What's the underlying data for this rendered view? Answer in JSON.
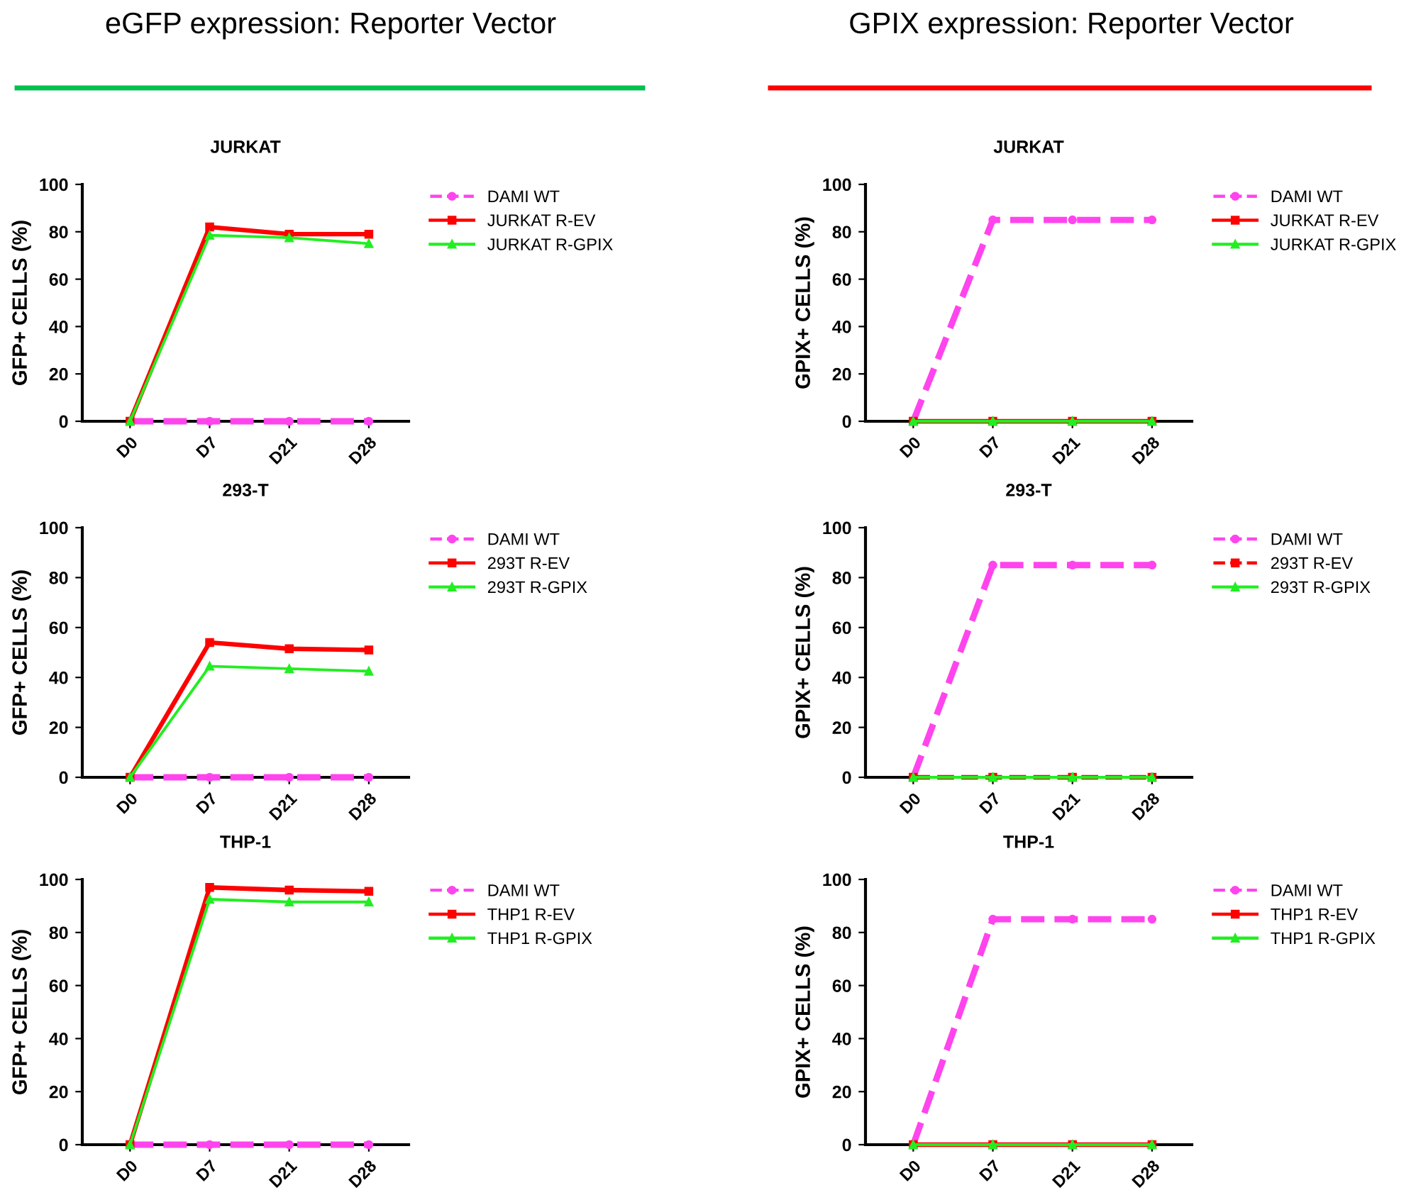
{
  "chart_data": [
    {
      "type": "line",
      "annotations": [
        "eGFP expression: Reporter Vector"
      ],
      "title": "JURKAT",
      "ylabel": "GFP+ CELLS (%)",
      "categories": [
        "D0",
        "D7",
        "D21",
        "D28"
      ],
      "ylim": [
        0,
        100
      ],
      "yticks": [
        0,
        20,
        40,
        60,
        80,
        100
      ],
      "grid": false,
      "legend": "right",
      "series": [
        {
          "name": "DAMI WT",
          "color": "#ff44ee",
          "values": [
            0,
            0,
            0,
            0
          ],
          "line_style": "dashed",
          "marker": "circle"
        },
        {
          "name": "JURKAT R-EV",
          "color": "#ff0000",
          "values": [
            0,
            82,
            79,
            79
          ],
          "line_style": "solid",
          "marker": "square"
        },
        {
          "name": "JURKAT R-GPIX",
          "color": "#22ee22",
          "values": [
            0,
            78.5,
            77.5,
            75
          ],
          "line_style": "solid",
          "marker": "triangle"
        }
      ]
    },
    {
      "type": "line",
      "title": "293-T",
      "ylabel": "GFP+ CELLS (%)",
      "categories": [
        "D0",
        "D7",
        "D21",
        "D28"
      ],
      "ylim": [
        0,
        100
      ],
      "yticks": [
        0,
        20,
        40,
        60,
        80,
        100
      ],
      "grid": false,
      "legend": "right",
      "series": [
        {
          "name": "DAMI WT",
          "color": "#ff44ee",
          "values": [
            0,
            0,
            0,
            0
          ],
          "line_style": "dashed",
          "marker": "circle"
        },
        {
          "name": "293T R-EV",
          "color": "#ff0000",
          "values": [
            0,
            54,
            51.5,
            51
          ],
          "line_style": "solid",
          "marker": "square"
        },
        {
          "name": "293T R-GPIX",
          "color": "#22ee22",
          "values": [
            0,
            44.5,
            43.5,
            42.5
          ],
          "line_style": "solid",
          "marker": "triangle"
        }
      ]
    },
    {
      "type": "line",
      "title": "THP-1",
      "ylabel": "GFP+ CELLS (%)",
      "categories": [
        "D0",
        "D7",
        "D21",
        "D28"
      ],
      "ylim": [
        0,
        100
      ],
      "yticks": [
        0,
        20,
        40,
        60,
        80,
        100
      ],
      "grid": false,
      "legend": "right",
      "series": [
        {
          "name": "DAMI WT",
          "color": "#ff44ee",
          "values": [
            0,
            0,
            0,
            0
          ],
          "line_style": "dashed",
          "marker": "circle"
        },
        {
          "name": "THP1 R-EV",
          "color": "#ff0000",
          "values": [
            0,
            97,
            96,
            95.5
          ],
          "line_style": "solid",
          "marker": "square"
        },
        {
          "name": "THP1 R-GPIX",
          "color": "#22ee22",
          "values": [
            0,
            92.5,
            91.5,
            91.5
          ],
          "line_style": "solid",
          "marker": "triangle"
        }
      ]
    },
    {
      "type": "line",
      "annotations": [
        "GPIX expression: Reporter Vector"
      ],
      "title": "JURKAT",
      "ylabel": "GPIX+ CELLS (%)",
      "categories": [
        "D0",
        "D7",
        "D21",
        "D28"
      ],
      "ylim": [
        0,
        100
      ],
      "yticks": [
        0,
        20,
        40,
        60,
        80,
        100
      ],
      "grid": false,
      "legend": "right",
      "series": [
        {
          "name": "DAMI WT",
          "color": "#ff44ee",
          "values": [
            0,
            85,
            85,
            85
          ],
          "line_style": "dashed",
          "marker": "circle"
        },
        {
          "name": "JURKAT R-EV",
          "color": "#ff0000",
          "values": [
            0,
            0,
            0,
            0
          ],
          "line_style": "solid",
          "marker": "square"
        },
        {
          "name": "JURKAT R-GPIX",
          "color": "#22ee22",
          "values": [
            0,
            0,
            0,
            0
          ],
          "line_style": "solid",
          "marker": "triangle"
        }
      ]
    },
    {
      "type": "line",
      "title": "293-T",
      "ylabel": "GPIX+ CELLS (%)",
      "categories": [
        "D0",
        "D7",
        "D21",
        "D28"
      ],
      "ylim": [
        0,
        100
      ],
      "yticks": [
        0,
        20,
        40,
        60,
        80,
        100
      ],
      "grid": false,
      "legend": "right",
      "series": [
        {
          "name": "DAMI WT",
          "color": "#ff44ee",
          "values": [
            0,
            85,
            85,
            85
          ],
          "line_style": "dashed",
          "marker": "circle"
        },
        {
          "name": "293T R-EV",
          "color": "#ff0000",
          "values": [
            0,
            0,
            0,
            0
          ],
          "line_style": "dashed",
          "marker": "square"
        },
        {
          "name": "293T R-GPIX",
          "color": "#22ee22",
          "values": [
            0,
            0,
            0,
            0
          ],
          "line_style": "solid",
          "marker": "triangle"
        }
      ]
    },
    {
      "type": "line",
      "title": "THP-1",
      "ylabel": "GPIX+ CELLS (%)",
      "categories": [
        "D0",
        "D7",
        "D21",
        "D28"
      ],
      "ylim": [
        0,
        100
      ],
      "yticks": [
        0,
        20,
        40,
        60,
        80,
        100
      ],
      "grid": false,
      "legend": "right",
      "series": [
        {
          "name": "DAMI WT",
          "color": "#ff44ee",
          "values": [
            0,
            85,
            85,
            85
          ],
          "line_style": "dashed",
          "marker": "circle"
        },
        {
          "name": "THP1 R-EV",
          "color": "#ff0000",
          "values": [
            0,
            0,
            0,
            0
          ],
          "line_style": "solid",
          "marker": "square"
        },
        {
          "name": "THP1 R-GPIX",
          "color": "#22ee22",
          "values": [
            0,
            0,
            0,
            0
          ],
          "line_style": "solid",
          "marker": "triangle"
        }
      ]
    }
  ]
}
